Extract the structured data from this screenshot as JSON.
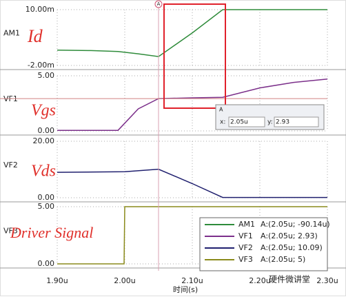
{
  "chart_data": [
    {
      "type": "line",
      "annotation": "Id",
      "x": [
        1.9e-06,
        1.95e-06,
        1.99e-06,
        2.02e-06,
        2.05e-06,
        2.1e-06,
        2.145e-06,
        2.2e-06,
        2.3e-06
      ],
      "series": [
        {
          "name": "AM1",
          "color": "#2e8b3a",
          "readout": "A:(2.05u; -90.14u)",
          "values": [
            0.0013,
            0.0012,
            0.001,
            0.0005,
            -9e-05,
            0.005,
            0.01,
            0.01,
            0.01
          ]
        }
      ],
      "xlim": [
        1.9e-06,
        2.3e-06
      ],
      "ylim": [
        -0.002,
        0.01
      ],
      "yticks": [
        {
          "value": 0.01,
          "label": "10.00m"
        },
        {
          "value": -0.002,
          "label": "-2.00m"
        }
      ]
    },
    {
      "type": "line",
      "annotation": "Vgs",
      "x": [
        1.9e-06,
        1.99e-06,
        2e-06,
        2.02e-06,
        2.05e-06,
        2.1e-06,
        2.145e-06,
        2.2e-06,
        2.25e-06,
        2.3e-06
      ],
      "series": [
        {
          "name": "VF1",
          "color": "#7b2f8a",
          "readout": "A:(2.05u; 2.93)",
          "values": [
            0.05,
            0.05,
            0.7,
            2.0,
            2.93,
            3.0,
            3.05,
            3.9,
            4.4,
            4.7
          ]
        }
      ],
      "xlim": [
        1.9e-06,
        2.3e-06
      ],
      "ylim": [
        0,
        5
      ],
      "yticks": [
        {
          "value": 5,
          "label": "5.00"
        },
        {
          "value": 0,
          "label": "0.00"
        }
      ]
    },
    {
      "type": "line",
      "annotation": "Vds",
      "x": [
        1.9e-06,
        2e-06,
        2.05e-06,
        2.1e-06,
        2.145e-06,
        2.3e-06
      ],
      "series": [
        {
          "name": "VF2",
          "color": "#1f1f6e",
          "readout": "A:(2.05u; 10.09)",
          "values": [
            9.0,
            9.2,
            10.09,
            5.0,
            0.1,
            0.1
          ]
        }
      ],
      "xlim": [
        1.9e-06,
        2.3e-06
      ],
      "ylim": [
        0,
        20
      ],
      "yticks": [
        {
          "value": 20,
          "label": "20.00"
        },
        {
          "value": 0,
          "label": "0.00"
        }
      ]
    },
    {
      "type": "line",
      "annotation": "Driver Signal",
      "x": [
        1.9e-06,
        1.999e-06,
        2e-06,
        2.3e-06
      ],
      "series": [
        {
          "name": "VF3",
          "color": "#8a8a1a",
          "readout": "A:(2.05u; 5)",
          "values": [
            0,
            0,
            5,
            5
          ]
        }
      ],
      "xlim": [
        1.9e-06,
        2.3e-06
      ],
      "ylim": [
        0,
        5
      ],
      "yticks": [
        {
          "value": 5,
          "label": "5.00"
        },
        {
          "value": 0,
          "label": "0.00"
        }
      ],
      "xticks": [
        {
          "value": 1.9e-06,
          "label": "1.90u"
        },
        {
          "value": 2e-06,
          "label": "2.00u"
        },
        {
          "value": 2.1e-06,
          "label": "2.10u"
        },
        {
          "value": 2.2e-06,
          "label": "2.20u"
        },
        {
          "value": 2.3e-06,
          "label": "2.30u"
        }
      ],
      "x_label": "时间(s)"
    }
  ],
  "cursor": {
    "name": "A",
    "x": {
      "value": 2.05e-06,
      "label": "2.05u"
    },
    "y": 2.93,
    "x_prefix": "x:",
    "y_prefix": "y:"
  },
  "watermark": "硬件微讲堂"
}
